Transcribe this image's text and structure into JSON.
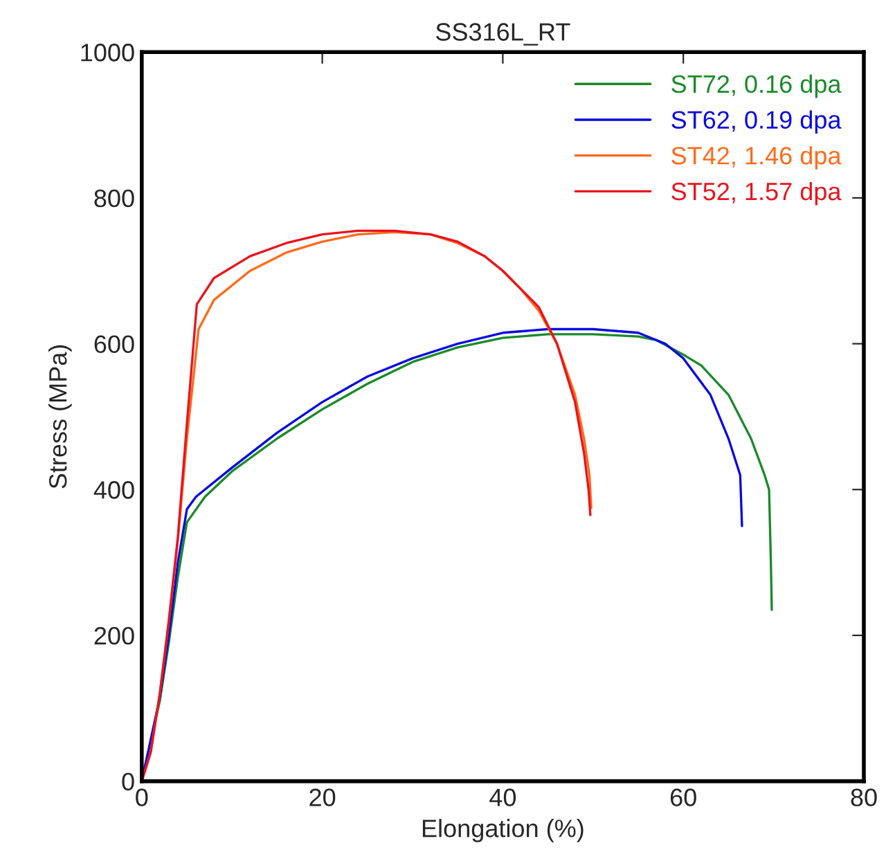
{
  "chart_data": {
    "type": "line",
    "title": "SS316L_RT",
    "xlabel": "Elongation (%)",
    "ylabel": "Stress (MPa)",
    "xlim": [
      0,
      80
    ],
    "ylim": [
      0,
      1000
    ],
    "xticks": [
      0,
      20,
      40,
      60,
      80
    ],
    "yticks": [
      0,
      200,
      400,
      600,
      800,
      1000
    ],
    "grid": false,
    "legend": "top right",
    "series": [
      {
        "name": "ST72, 0.16 dpa",
        "color": "#1a8a2a",
        "x": [
          0,
          2,
          3,
          4,
          5,
          7,
          10,
          15,
          20,
          25,
          30,
          35,
          40,
          45,
          50,
          55,
          57,
          60,
          62,
          65,
          67.5,
          69,
          69.5,
          69.7,
          69.8
        ],
        "values": [
          0,
          110,
          190,
          280,
          355,
          390,
          425,
          470,
          510,
          545,
          575,
          595,
          608,
          613,
          613,
          610,
          605,
          585,
          570,
          530,
          470,
          420,
          400,
          300,
          235
        ]
      },
      {
        "name": "ST62, 0.19 dpa",
        "color": "#0a0ae0",
        "x": [
          0,
          2,
          3,
          4,
          5,
          6,
          10,
          15,
          20,
          25,
          30,
          35,
          40,
          45,
          50,
          55,
          58,
          60,
          63,
          65,
          66.3,
          66.5
        ],
        "values": [
          0,
          115,
          200,
          300,
          373,
          390,
          430,
          478,
          520,
          555,
          580,
          600,
          615,
          620,
          620,
          615,
          600,
          580,
          530,
          470,
          420,
          350
        ]
      },
      {
        "name": "ST42, 1.46 dpa",
        "color": "#ff6a1a",
        "x": [
          0,
          1,
          2,
          3,
          4,
          5,
          6.3,
          8,
          12,
          16,
          20,
          24,
          28,
          32,
          35,
          38,
          40,
          42,
          44,
          46,
          48,
          49,
          49.6,
          49.8
        ],
        "values": [
          0,
          40,
          120,
          220,
          330,
          470,
          620,
          660,
          700,
          725,
          740,
          750,
          753,
          750,
          738,
          720,
          700,
          675,
          645,
          600,
          530,
          470,
          420,
          375
        ]
      },
      {
        "name": "ST52, 1.57 dpa",
        "color": "#e8141e",
        "x": [
          0,
          1,
          2,
          3,
          4,
          5,
          6.1,
          8,
          12,
          16,
          20,
          24,
          28,
          32,
          35,
          38,
          40,
          42,
          44,
          46,
          48,
          49,
          49.5,
          49.7
        ],
        "values": [
          0,
          40,
          120,
          220,
          335,
          490,
          654,
          690,
          720,
          738,
          750,
          755,
          755,
          750,
          740,
          720,
          700,
          675,
          650,
          600,
          520,
          450,
          400,
          365
        ]
      }
    ]
  }
}
